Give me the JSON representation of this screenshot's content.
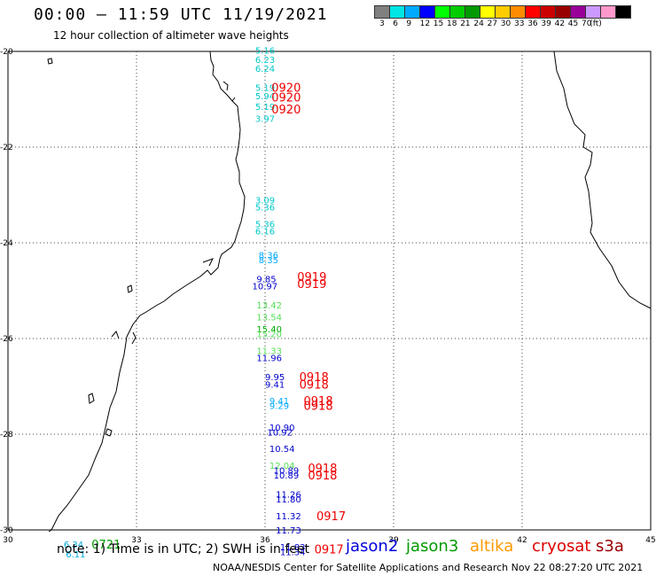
{
  "title": "00:00 – 11:59 UTC 11/19/2021",
  "subtitle": "12 hour collection of altimeter wave heights",
  "scale": {
    "colors": [
      "#808080",
      "#00e5e5",
      "#00aaff",
      "#0000ff",
      "#00ff00",
      "#00cc00",
      "#009900",
      "#ffff00",
      "#ffcc00",
      "#ff8c00",
      "#ff0000",
      "#cc0000",
      "#990000",
      "#990099",
      "#cc99ff",
      "#ff99cc",
      "#000000"
    ],
    "labels": [
      "3",
      "6",
      "9",
      "12",
      "15",
      "18",
      "21",
      "24",
      "27",
      "30",
      "33",
      "36",
      "39",
      "42",
      "45",
      "70",
      "(ft)"
    ]
  },
  "axes": {
    "x_ticks": [
      "30",
      "33",
      "36",
      "39",
      "42",
      "45"
    ],
    "y_ticks": [
      "-20",
      "-22",
      "-24",
      "-26",
      "-28",
      "-30"
    ]
  },
  "observations": [
    {
      "text": "5.16",
      "color": "#00c8c8",
      "lon": 35.77,
      "lat": -19.97
    },
    {
      "text": "6.23",
      "color": "#00c8c8",
      "lon": 35.77,
      "lat": -20.17
    },
    {
      "text": "6.24",
      "color": "#00c8c8",
      "lon": 35.77,
      "lat": -20.35
    },
    {
      "text": "5.19",
      "color": "#00c8c8",
      "lon": 35.77,
      "lat": -20.75
    },
    {
      "text": "5.94",
      "color": "#00c8c8",
      "lon": 35.77,
      "lat": -20.93
    },
    {
      "text": "5.19",
      "color": "#00c8c8",
      "lon": 35.77,
      "lat": -21.15
    },
    {
      "text": "3.97",
      "color": "#00c8c8",
      "lon": 35.77,
      "lat": -21.4
    },
    {
      "text": "3.09",
      "color": "#00c8c8",
      "lon": 35.77,
      "lat": -23.1
    },
    {
      "text": "5.36",
      "color": "#00c8c8",
      "lon": 35.77,
      "lat": -23.25
    },
    {
      "text": "5.36",
      "color": "#00c8c8",
      "lon": 35.77,
      "lat": -23.6
    },
    {
      "text": "6.16",
      "color": "#00c8c8",
      "lon": 35.77,
      "lat": -23.75
    },
    {
      "text": "8.36",
      "color": "#00aaff",
      "lon": 35.85,
      "lat": -24.25
    },
    {
      "text": "8.35",
      "color": "#00aaff",
      "lon": 35.85,
      "lat": -24.35
    },
    {
      "text": "9.85",
      "color": "#0000cc",
      "lon": 35.8,
      "lat": -24.75
    },
    {
      "text": "10.97",
      "color": "#0000cc",
      "lon": 35.7,
      "lat": -24.9
    },
    {
      "text": "13.42",
      "color": "#55dd55",
      "lon": 35.8,
      "lat": -25.3
    },
    {
      "text": "13.54",
      "color": "#55dd55",
      "lon": 35.8,
      "lat": -25.55
    },
    {
      "text": "15.40",
      "color": "#00aa00",
      "lon": 35.8,
      "lat": -25.8
    },
    {
      "text": "15.20",
      "color": "#55dd55",
      "lon": 35.8,
      "lat": -25.9
    },
    {
      "text": "11.33",
      "color": "#55dd55",
      "lon": 35.8,
      "lat": -26.25
    },
    {
      "text": "11.96",
      "color": "#0000cc",
      "lon": 35.8,
      "lat": -26.4
    },
    {
      "text": "9.95",
      "color": "#0000cc",
      "lon": 36.0,
      "lat": -26.8
    },
    {
      "text": "9.41",
      "color": "#0000cc",
      "lon": 36.0,
      "lat": -26.95
    },
    {
      "text": "9.41",
      "color": "#00aaff",
      "lon": 36.1,
      "lat": -27.3
    },
    {
      "text": "9.29",
      "color": "#00aaff",
      "lon": 36.1,
      "lat": -27.4
    },
    {
      "text": "10.90",
      "color": "#0000cc",
      "lon": 36.1,
      "lat": -27.85
    },
    {
      "text": "10.92",
      "color": "#0000cc",
      "lon": 36.05,
      "lat": -27.95
    },
    {
      "text": "10.54",
      "color": "#0000cc",
      "lon": 36.1,
      "lat": -28.3
    },
    {
      "text": "12.04",
      "color": "#55dd55",
      "lon": 36.1,
      "lat": -28.65
    },
    {
      "text": "10.89",
      "color": "#0000cc",
      "lon": 36.2,
      "lat": -28.75
    },
    {
      "text": "10.89",
      "color": "#0000cc",
      "lon": 36.2,
      "lat": -28.85
    },
    {
      "text": "11.26",
      "color": "#0000cc",
      "lon": 36.25,
      "lat": -29.25
    },
    {
      "text": "11.80",
      "color": "#0000cc",
      "lon": 36.25,
      "lat": -29.35
    },
    {
      "text": "11.32",
      "color": "#0000cc",
      "lon": 36.25,
      "lat": -29.7
    },
    {
      "text": "11.73",
      "color": "#0000cc",
      "lon": 36.25,
      "lat": -30.0
    },
    {
      "text": "11.83",
      "color": "#0000cc",
      "lon": 36.35,
      "lat": -30.35
    },
    {
      "text": "11.34",
      "color": "#0000cc",
      "lon": 36.35,
      "lat": -30.45
    },
    {
      "text": "6.34",
      "color": "#00aadd",
      "lon": 31.3,
      "lat": -30.3
    },
    {
      "text": "6.11",
      "color": "#00aadd",
      "lon": 31.35,
      "lat": -30.5
    }
  ],
  "passes": [
    {
      "text": "0920",
      "color": "#ee0000",
      "lon": 36.15,
      "lat": -20.75
    },
    {
      "text": "0920",
      "color": "#ee0000",
      "lon": 36.15,
      "lat": -20.95
    },
    {
      "text": "0920",
      "color": "#ee0000",
      "lon": 36.15,
      "lat": -21.2
    },
    {
      "text": "0919",
      "color": "#ee0000",
      "lon": 36.75,
      "lat": -24.7
    },
    {
      "text": "0919",
      "color": "#ee0000",
      "lon": 36.75,
      "lat": -24.85
    },
    {
      "text": "0918",
      "color": "#ee0000",
      "lon": 36.8,
      "lat": -26.8
    },
    {
      "text": "0918",
      "color": "#ee0000",
      "lon": 36.8,
      "lat": -26.95
    },
    {
      "text": "0918",
      "color": "#ee0000",
      "lon": 36.9,
      "lat": -27.3
    },
    {
      "text": "0918",
      "color": "#ee0000",
      "lon": 36.9,
      "lat": -27.4
    },
    {
      "text": "0918",
      "color": "#ee0000",
      "lon": 37.0,
      "lat": -28.7
    },
    {
      "text": "0918",
      "color": "#ee0000",
      "lon": 37.0,
      "lat": -28.85
    },
    {
      "text": "0917",
      "color": "#ee0000",
      "lon": 37.2,
      "lat": -29.7
    },
    {
      "text": "0917",
      "color": "#ee0000",
      "lon": 37.15,
      "lat": -30.4
    },
    {
      "text": "0721",
      "color": "#009900",
      "lon": 31.95,
      "lat": -30.3
    }
  ],
  "note": "note:  1) Time is in UTC;  2) SWH is in feet",
  "satellites": [
    {
      "name": "jason2",
      "color": "#0000dd"
    },
    {
      "name": "jason3",
      "color": "#009900"
    },
    {
      "name": "altika",
      "color": "#ff9900"
    },
    {
      "name": "cryosat",
      "color": "#dd0000"
    },
    {
      "name": "s3a",
      "color": "#990000"
    }
  ],
  "footer": "NOAA/NESDIS Center for Satellite Applications and Research      Nov 22 08:27:20 UTC 2021"
}
